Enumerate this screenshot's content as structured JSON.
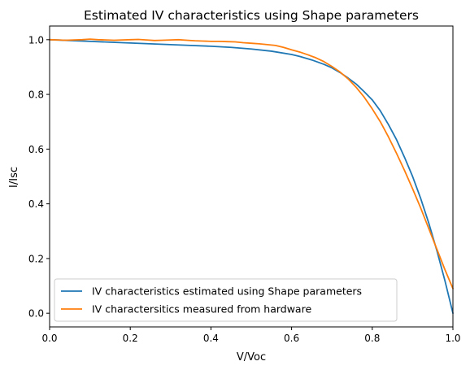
{
  "chart_data": {
    "type": "line",
    "title": "Estimated IV characteristics using Shape parameters",
    "xlabel": "V/Voc",
    "ylabel": "I/Isc",
    "xlim": [
      0,
      1
    ],
    "ylim": [
      -0.05,
      1.05
    ],
    "xticks": [
      0,
      0.2,
      0.4,
      0.6,
      0.8,
      1.0
    ],
    "xtick_labels": [
      "0.0",
      "0.2",
      "0.4",
      "0.6",
      "0.8",
      "1.0"
    ],
    "yticks": [
      0,
      0.2,
      0.4,
      0.6,
      0.8,
      1.0
    ],
    "ytick_labels": [
      "0.0",
      "0.2",
      "0.4",
      "0.6",
      "0.8",
      "1.0"
    ],
    "grid": false,
    "legend_position": "lower-left",
    "series": [
      {
        "name": "IV characteristics estimated using Shape parameters",
        "color": "#1f77b4",
        "x": [
          0.0,
          0.05,
          0.1,
          0.15,
          0.2,
          0.25,
          0.3,
          0.35,
          0.4,
          0.45,
          0.5,
          0.55,
          0.6,
          0.62,
          0.65,
          0.68,
          0.7,
          0.72,
          0.74,
          0.76,
          0.78,
          0.8,
          0.82,
          0.84,
          0.86,
          0.88,
          0.9,
          0.92,
          0.94,
          0.96,
          0.98,
          1.0
        ],
        "y": [
          1.0,
          0.997,
          0.994,
          0.991,
          0.988,
          0.985,
          0.982,
          0.979,
          0.976,
          0.972,
          0.966,
          0.958,
          0.946,
          0.939,
          0.926,
          0.91,
          0.897,
          0.88,
          0.86,
          0.838,
          0.81,
          0.78,
          0.74,
          0.69,
          0.635,
          0.57,
          0.5,
          0.42,
          0.33,
          0.23,
          0.12,
          0.0
        ]
      },
      {
        "name": "IV charactersitics measured from hardware",
        "color": "#ff7f0e",
        "x": [
          0.0,
          0.02,
          0.04,
          0.06,
          0.08,
          0.1,
          0.12,
          0.14,
          0.16,
          0.18,
          0.2,
          0.22,
          0.24,
          0.26,
          0.28,
          0.3,
          0.32,
          0.34,
          0.36,
          0.38,
          0.4,
          0.42,
          0.44,
          0.46,
          0.48,
          0.5,
          0.52,
          0.54,
          0.56,
          0.58,
          0.6,
          0.62,
          0.64,
          0.66,
          0.68,
          0.7,
          0.72,
          0.74,
          0.76,
          0.78,
          0.8,
          0.82,
          0.84,
          0.86,
          0.88,
          0.9,
          0.92,
          0.94,
          0.96,
          0.98,
          1.0
        ],
        "y": [
          1.0,
          0.999,
          0.998,
          0.999,
          1.0,
          1.002,
          1.0,
          0.999,
          0.998,
          0.999,
          1.0,
          1.001,
          0.999,
          0.997,
          0.998,
          0.999,
          1.0,
          0.998,
          0.996,
          0.995,
          0.994,
          0.994,
          0.993,
          0.992,
          0.989,
          0.987,
          0.985,
          0.982,
          0.979,
          0.972,
          0.963,
          0.955,
          0.945,
          0.934,
          0.92,
          0.902,
          0.882,
          0.857,
          0.826,
          0.79,
          0.747,
          0.7,
          0.645,
          0.585,
          0.522,
          0.455,
          0.385,
          0.31,
          0.235,
          0.16,
          0.09
        ]
      }
    ]
  }
}
